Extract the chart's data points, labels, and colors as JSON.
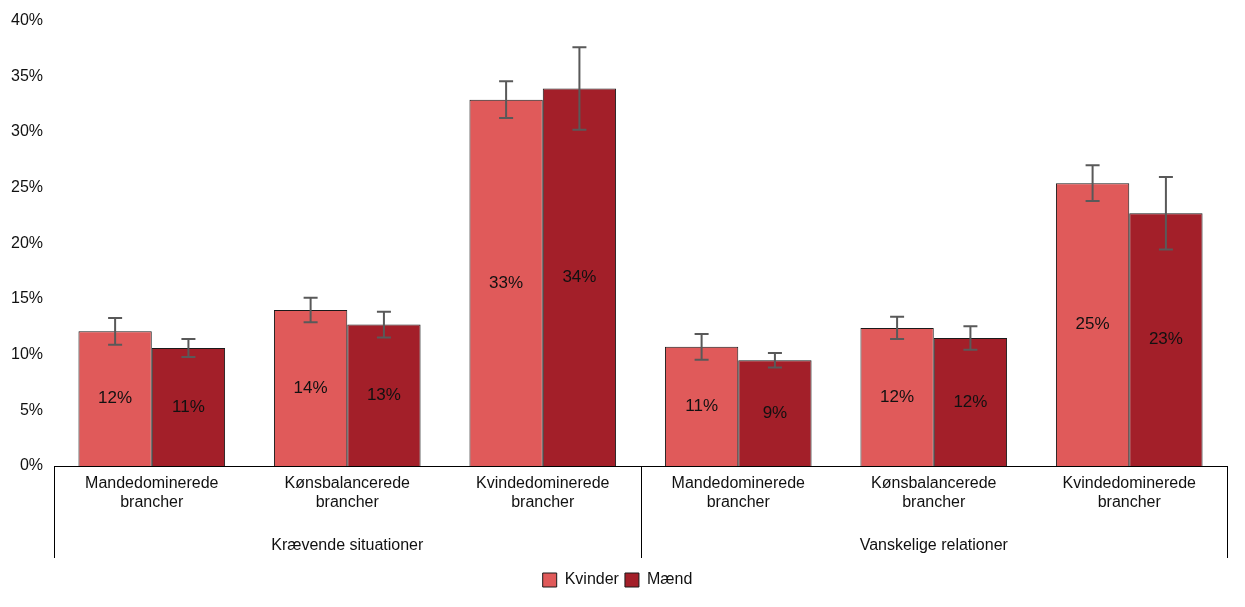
{
  "chart_data": {
    "type": "bar",
    "categories": [
      "Mandedominerede brancher",
      "Kønsbalancerede brancher",
      "Kvindedominerede brancher",
      "Mandedominerede brancher",
      "Kønsbalancerede brancher",
      "Kvindedominerede brancher"
    ],
    "series": [
      {
        "name": "Kvinder",
        "color": "#e05a5a",
        "values": [
          12.1,
          14.0,
          32.9,
          10.7,
          12.4,
          25.4
        ],
        "errors": [
          1.2,
          1.1,
          1.65,
          1.15,
          1.0,
          1.6
        ],
        "value_labels": [
          "12%",
          "14%",
          "33%",
          "11%",
          "12%",
          "25%"
        ]
      },
      {
        "name": "Mænd",
        "color": "#a31f29",
        "values": [
          10.6,
          12.7,
          33.9,
          9.5,
          11.5,
          22.7
        ],
        "errors": [
          0.8,
          1.15,
          3.7,
          0.65,
          1.05,
          3.25
        ],
        "value_labels": [
          "11%",
          "13%",
          "34%",
          "9%",
          "12%",
          "23%"
        ]
      }
    ],
    "annotations": [
      "Krævende situationer",
      "Vanskelige relationer"
    ],
    "ylim": [
      0,
      40
    ],
    "yticks": [
      {
        "value": 0,
        "label": "0%"
      },
      {
        "value": 5,
        "label": "5%"
      },
      {
        "value": 10,
        "label": "10%"
      },
      {
        "value": 15,
        "label": "15%"
      },
      {
        "value": 20,
        "label": "20%"
      },
      {
        "value": 25,
        "label": "25%"
      },
      {
        "value": 30,
        "label": "30%"
      },
      {
        "value": 35,
        "label": "35%"
      },
      {
        "value": 40,
        "label": "40%"
      }
    ],
    "grid": false,
    "legend": "bottom"
  }
}
